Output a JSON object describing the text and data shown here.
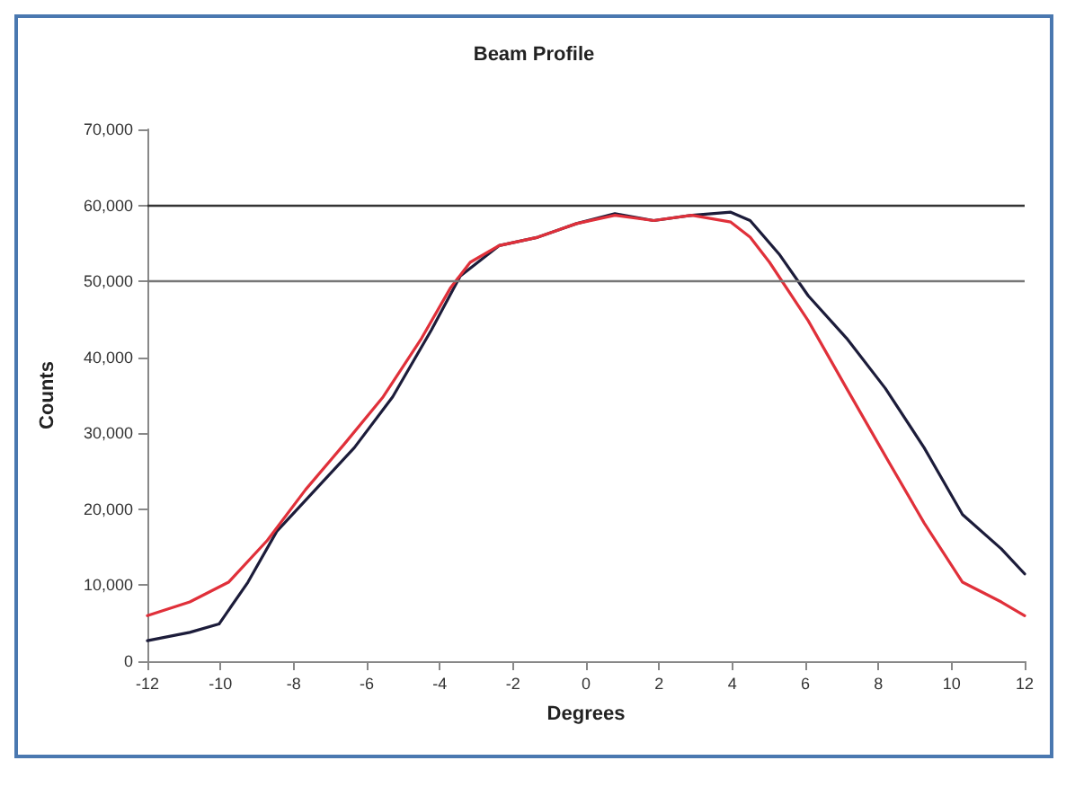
{
  "chart_data": {
    "type": "line",
    "title": "Beam Profile",
    "xlabel": "Degrees",
    "ylabel": "Counts",
    "xlim": [
      -12,
      12
    ],
    "xticks": [
      -12,
      -10,
      -8,
      -6,
      -4,
      -2,
      0,
      2,
      4,
      6,
      8,
      10,
      12
    ],
    "ylim": [
      0,
      70000
    ],
    "yticks": [
      0,
      {
        "value": 10000,
        "label": "10,000"
      },
      {
        "value": 20000,
        "label": "20,000"
      },
      {
        "value": 30000,
        "label": "30,000"
      },
      {
        "value": 40000,
        "label": "40,000"
      },
      {
        "value": 50000,
        "label": "50,000"
      },
      {
        "value": 60000,
        "label": "60,000"
      },
      {
        "value": 70000,
        "label": "70,000"
      }
    ],
    "grid": false,
    "marker": "none",
    "line_style": "solid",
    "ref_lines": [
      {
        "axis": "y",
        "value": 60000,
        "label": null,
        "color": "#333333"
      },
      {
        "axis": "y",
        "value": 50000,
        "label": null,
        "color": "#777777"
      }
    ],
    "series": [
      {
        "color": "#1c1c3a",
        "x": [
          -12,
          -10.84,
          -10.04,
          -9.25,
          -8.46,
          -7.4,
          -6.34,
          -5.29,
          -4.23,
          -3.44,
          -2.38,
          -1.32,
          -0.26,
          0.79,
          1.85,
          2.9,
          3.96,
          4.49,
          5.28,
          6.08,
          7.13,
          8.19,
          9.25,
          10.3,
          11.36,
          12
        ],
        "values": [
          2700,
          3800,
          4900,
          10400,
          17100,
          22600,
          28100,
          34800,
          43600,
          50700,
          54700,
          55800,
          57600,
          58900,
          58000,
          58700,
          59100,
          58000,
          53600,
          48100,
          42500,
          35900,
          28100,
          19300,
          14800,
          11500
        ]
      },
      {
        "color": "#e0303a",
        "x": [
          -12,
          -10.84,
          -9.78,
          -8.72,
          -7.67,
          -6.61,
          -5.55,
          -4.5,
          -3.7,
          -3.17,
          -2.38,
          -1.32,
          -0.26,
          0.79,
          1.85,
          2.9,
          3.96,
          4.49,
          5.02,
          6.08,
          7.13,
          8.19,
          9.25,
          10.3,
          11.36,
          12
        ],
        "values": [
          6000,
          7800,
          10400,
          15900,
          22600,
          28600,
          34800,
          42500,
          49200,
          52500,
          54700,
          55800,
          57600,
          58700,
          58000,
          58700,
          57800,
          55800,
          52500,
          44800,
          35900,
          27000,
          18200,
          10400,
          7800,
          6000
        ]
      }
    ]
  }
}
